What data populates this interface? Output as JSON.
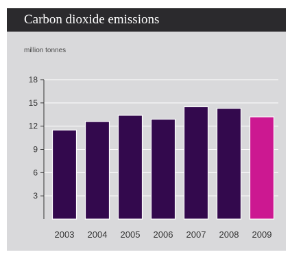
{
  "chart_data": {
    "type": "bar",
    "title": "Carbon dioxide emissions",
    "ylabel": "million tonnes",
    "xlabel": "",
    "categories": [
      "2003",
      "2004",
      "2005",
      "2006",
      "2007",
      "2008",
      "2009"
    ],
    "values": [
      11.5,
      12.6,
      13.4,
      12.9,
      14.5,
      14.3,
      13.2
    ],
    "ylim": [
      0,
      18
    ],
    "yticks": [
      3,
      6,
      9,
      12,
      15,
      18
    ],
    "grid": true,
    "colors": {
      "bar": "#33094d",
      "highlight_bar": "#cc1891",
      "header_bg": "#2b2a2d",
      "panel_bg": "#d9d9db"
    },
    "highlight_category": "2009"
  }
}
